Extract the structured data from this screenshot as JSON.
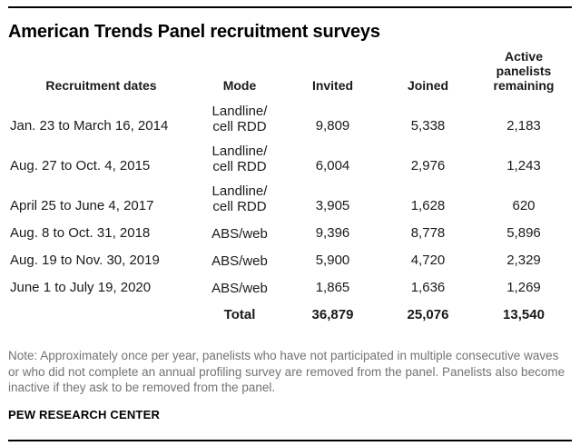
{
  "title": "American Trends Panel recruitment surveys",
  "colors": {
    "text": "#1a1a1a",
    "note_text": "#737373",
    "rule": "#000000",
    "background": "#ffffff"
  },
  "table": {
    "headers": {
      "dates": "Recruitment dates",
      "mode": "Mode",
      "invited": "Invited",
      "joined": "Joined",
      "remaining": "Active\npanelists\nremaining"
    },
    "rows": [
      {
        "dates": "Jan. 23 to March 16, 2014",
        "mode": "Landline/\ncell RDD",
        "invited": "9,809",
        "joined": "5,338",
        "remaining": "2,183"
      },
      {
        "dates": "Aug. 27 to Oct. 4, 2015",
        "mode": "Landline/\ncell RDD",
        "invited": "6,004",
        "joined": "2,976",
        "remaining": "1,243"
      },
      {
        "dates": "April 25 to June 4, 2017",
        "mode": "Landline/\ncell RDD",
        "invited": "3,905",
        "joined": "1,628",
        "remaining": "620"
      },
      {
        "dates": "Aug. 8 to Oct. 31, 2018",
        "mode": "ABS/web",
        "invited": "9,396",
        "joined": "8,778",
        "remaining": "5,896"
      },
      {
        "dates": "Aug. 19 to Nov. 30, 2019",
        "mode": "ABS/web",
        "invited": "5,900",
        "joined": "4,720",
        "remaining": "2,329"
      },
      {
        "dates": "June 1 to July 19, 2020",
        "mode": "ABS/web",
        "invited": "1,865",
        "joined": "1,636",
        "remaining": "1,269"
      }
    ],
    "total": {
      "label": "Total",
      "invited": "36,879",
      "joined": "25,076",
      "remaining": "13,540"
    }
  },
  "note": "Note: Approximately once per year, panelists who have not participated in multiple consecutive waves or who did not complete an annual profiling survey are removed from the panel. Panelists also become inactive if they ask to be removed from the panel.",
  "source": "PEW RESEARCH CENTER",
  "chart_data": {
    "type": "table",
    "title": "American Trends Panel recruitment surveys",
    "columns": [
      "Recruitment dates",
      "Mode",
      "Invited",
      "Joined",
      "Active panelists remaining"
    ],
    "rows": [
      [
        "Jan. 23 to March 16, 2014",
        "Landline/cell RDD",
        9809,
        5338,
        2183
      ],
      [
        "Aug. 27 to Oct. 4, 2015",
        "Landline/cell RDD",
        6004,
        2976,
        1243
      ],
      [
        "April 25 to June 4, 2017",
        "Landline/cell RDD",
        3905,
        1628,
        620
      ],
      [
        "Aug. 8 to Oct. 31, 2018",
        "ABS/web",
        9396,
        8778,
        5896
      ],
      [
        "Aug. 19 to Nov. 30, 2019",
        "ABS/web",
        5900,
        4720,
        2329
      ],
      [
        "June 1 to July 19, 2020",
        "ABS/web",
        1865,
        1636,
        1269
      ]
    ],
    "total_row": [
      "",
      "Total",
      36879,
      25076,
      13540
    ],
    "note": "Note: Approximately once per year, panelists who have not participated in multiple consecutive waves or who did not complete an annual profiling survey are removed from the panel. Panelists also become inactive if they ask to be removed from the panel.",
    "source": "PEW RESEARCH CENTER",
    "layout": {
      "numeric_alignment": "center",
      "mode_column_alignment": "center",
      "grid": false
    }
  }
}
